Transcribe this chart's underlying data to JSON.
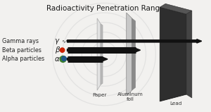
{
  "title": "Radioactivity Penetration Range",
  "title_fontsize": 7.5,
  "bg_color": "#f2f1ef",
  "labels": [
    "Alpha particles",
    "Beta particles",
    "Gamma rays"
  ],
  "greek": [
    "α",
    "β",
    "γ"
  ],
  "label_fontsize": 5.8,
  "greek_fontsize": 7.5,
  "barrier_label_fontsize": 5.2,
  "barrier_labels": [
    "Paper",
    "Aluminum\nfoil",
    "Lead"
  ],
  "arrow_color": "#111111",
  "alpha_green": "#3a7d2c",
  "alpha_blue": "#1a4fa0",
  "beta_red": "#cc2200",
  "circle_color": "#d8d8d8",
  "paper_face": "#e2e2e2",
  "paper_shade": "#b8b8b8",
  "alum_face": "#c8c8c8",
  "alum_shade": "#8a8a8a",
  "lead_face": "#2e2e2e",
  "lead_top": "#555555",
  "lead_side": "#444444"
}
